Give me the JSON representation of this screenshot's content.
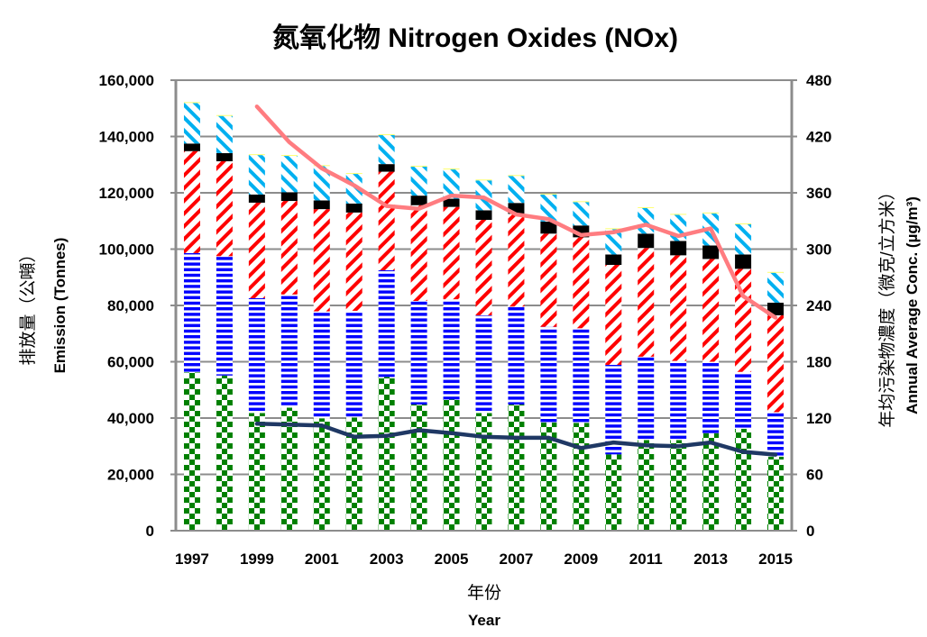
{
  "chart_data": {
    "type": "bar",
    "stacked": true,
    "title": "氮氧化物 Nitrogen Oxides (NOx)",
    "xlabel_zh": "年份",
    "xlabel": "Year",
    "ylabel_zh": "排放量（公噸）",
    "ylabel": "Emission (Tonnes)",
    "y2label_zh": "年均污染物濃度（微克/立方米）",
    "y2label": "Annual Average Conc. (µg/m³)",
    "ylim": [
      0,
      160000
    ],
    "y2lim": [
      0,
      480
    ],
    "yticks": [
      "0",
      "20,000",
      "40,000",
      "60,000",
      "80,000",
      "100,000",
      "120,000",
      "140,000",
      "160,000"
    ],
    "y2ticks": [
      "0",
      "60",
      "120",
      "180",
      "240",
      "300",
      "360",
      "420",
      "480"
    ],
    "xticks": [
      "1997",
      "1999",
      "2001",
      "2003",
      "2005",
      "2007",
      "2009",
      "2011",
      "2013",
      "2015"
    ],
    "grid": true,
    "legend": "none",
    "categories": [
      "1997",
      "1998",
      "1999",
      "2000",
      "2001",
      "2002",
      "2003",
      "2004",
      "2005",
      "2006",
      "2007",
      "2008",
      "2009",
      "2010",
      "2011",
      "2012",
      "2013",
      "2014",
      "2015"
    ],
    "series": [
      {
        "pattern": "checker",
        "color": "#008000",
        "values": [
          56200,
          55100,
          41800,
          43700,
          39900,
          40200,
          54600,
          44800,
          46600,
          41800,
          44800,
          38400,
          38300,
          27100,
          32200,
          32200,
          34600,
          36200,
          26300
        ]
      },
      {
        "pattern": "horizontal",
        "color": "#0000FF",
        "values": [
          42400,
          42400,
          40800,
          40200,
          38000,
          37900,
          37900,
          36800,
          35600,
          34700,
          34800,
          34000,
          33600,
          31800,
          29600,
          28100,
          25400,
          20200,
          15800
        ]
      },
      {
        "pattern": "diagonal-down",
        "color": "#FF0000",
        "values": [
          36200,
          33700,
          33900,
          33200,
          36300,
          34900,
          35000,
          34000,
          32800,
          33900,
          32900,
          33100,
          32300,
          35500,
          38600,
          37500,
          36500,
          36600,
          34400
        ]
      },
      {
        "pattern": "solid",
        "color": "#000000",
        "values": [
          2700,
          2900,
          2900,
          3100,
          3100,
          3200,
          2700,
          3400,
          2900,
          3400,
          3900,
          4300,
          4200,
          3700,
          5100,
          5100,
          4800,
          5100,
          4500
        ]
      },
      {
        "pattern": "diagonal-up",
        "color": "#00B0F0",
        "values": [
          14400,
          13200,
          14000,
          12900,
          12200,
          10500,
          10300,
          10300,
          10400,
          10600,
          9600,
          9600,
          8300,
          9000,
          9100,
          9300,
          11400,
          10700,
          10600
        ]
      },
      {
        "pattern": "solid",
        "color": "#FFFF66",
        "values": [
          300,
          300,
          300,
          300,
          300,
          300,
          300,
          300,
          300,
          300,
          300,
          300,
          300,
          300,
          300,
          300,
          300,
          300,
          300
        ]
      }
    ],
    "lines": [
      {
        "axis": "right",
        "color": "#FF7C80",
        "values": [
          null,
          null,
          452,
          414,
          386,
          368,
          346,
          343,
          357,
          355,
          337,
          332,
          315,
          318,
          326,
          314,
          322,
          250,
          227
        ]
      },
      {
        "axis": "right",
        "color": "#1F3864",
        "values": [
          null,
          null,
          114,
          113,
          112,
          100,
          101,
          107,
          104,
          100,
          99,
          99,
          88,
          94,
          91,
          90,
          94,
          84,
          81
        ]
      }
    ]
  }
}
